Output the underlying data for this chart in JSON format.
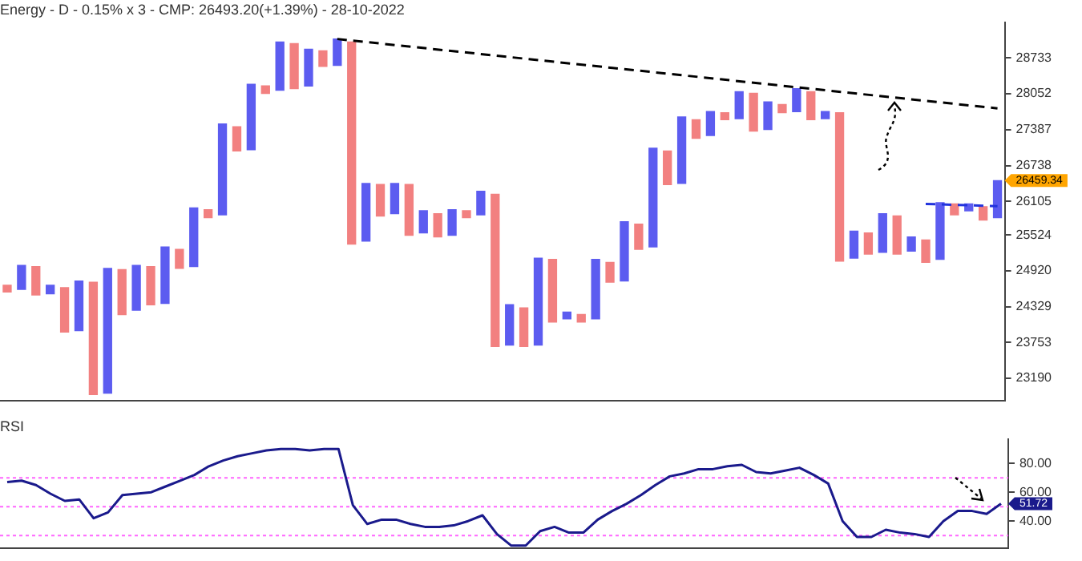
{
  "chart_data": [
    {
      "type": "bar",
      "title": "Energy - D - 0.15% x 3 - CMP: 26493.20(+1.39%) - 28-10-2022",
      "categories": [
        null,
        null,
        null,
        null,
        null,
        null,
        null,
        null,
        null,
        null,
        null,
        null,
        null,
        null,
        null,
        null,
        null,
        null,
        null,
        null,
        null,
        null,
        null,
        null,
        null,
        null,
        null,
        null,
        null,
        null,
        null,
        null,
        null,
        null,
        null,
        null,
        null,
        null,
        null,
        null,
        null,
        null,
        null,
        null,
        null,
        null,
        null,
        null,
        null,
        null,
        null,
        null,
        null,
        null,
        null,
        null,
        null,
        null,
        null,
        null,
        null,
        null,
        null,
        null,
        null,
        null,
        null,
        null,
        null,
        null
      ],
      "base": [
        24570,
        24610,
        24520,
        24540,
        23920,
        23940,
        22940,
        22960,
        24200,
        24270,
        24360,
        24380,
        24960,
        24990,
        25820,
        25870,
        27000,
        27020,
        28060,
        28120,
        28150,
        28200,
        28570,
        28590,
        25370,
        25420,
        25850,
        25890,
        25520,
        25560,
        25490,
        25520,
        25820,
        25870,
        23690,
        23710,
        23690,
        23710,
        24080,
        24130,
        24080,
        24130,
        24730,
        24750,
        25280,
        25320,
        26400,
        26420,
        27230,
        27280,
        27570,
        27590,
        27360,
        27390,
        27700,
        27720,
        27570,
        27590,
        25080,
        25130,
        25200,
        25230,
        25200,
        25250,
        25060,
        25110,
        25870,
        25940,
        25780,
        25820
      ],
      "values": [
        110,
        400,
        470,
        140,
        720,
        810,
        1790,
        2000,
        740,
        740,
        630,
        940,
        320,
        1000,
        140,
        1620,
        440,
        1210,
        140,
        920,
        860,
        700,
        300,
        510,
        3670,
        1000,
        550,
        530,
        880,
        380,
        400,
        440,
        120,
        410,
        2540,
        650,
        620,
        1420,
        1030,
        110,
        120,
        980,
        330,
        1000,
        430,
        1730,
        600,
        1200,
        340,
        440,
        130,
        500,
        700,
        510,
        150,
        430,
        520,
        130,
        2620,
        460,
        360,
        660,
        650,
        240,
        380,
        970,
        190,
        120,
        230,
        650
      ],
      "colors": [
        "#f28080",
        "#5c5cf0",
        "#f28080",
        "#5c5cf0",
        "#f28080",
        "#5c5cf0",
        "#f28080",
        "#5c5cf0",
        "#f28080",
        "#5c5cf0",
        "#f28080",
        "#5c5cf0",
        "#f28080",
        "#5c5cf0",
        "#f28080",
        "#5c5cf0",
        "#f28080",
        "#5c5cf0",
        "#f28080",
        "#5c5cf0",
        "#f28080",
        "#5c5cf0",
        "#f28080",
        "#5c5cf0",
        "#f28080",
        "#5c5cf0",
        "#f28080",
        "#5c5cf0",
        "#f28080",
        "#5c5cf0",
        "#f28080",
        "#5c5cf0",
        "#f28080",
        "#5c5cf0",
        "#f28080",
        "#5c5cf0",
        "#f28080",
        "#5c5cf0",
        "#f28080",
        "#5c5cf0",
        "#f28080",
        "#5c5cf0",
        "#f28080",
        "#5c5cf0",
        "#f28080",
        "#5c5cf0",
        "#f28080",
        "#5c5cf0",
        "#f28080",
        "#5c5cf0",
        "#f28080",
        "#5c5cf0",
        "#f28080",
        "#5c5cf0",
        "#f28080",
        "#5c5cf0",
        "#f28080",
        "#5c5cf0",
        "#f28080",
        "#5c5cf0",
        "#f28080",
        "#5c5cf0",
        "#f28080",
        "#5c5cf0",
        "#f28080",
        "#5c5cf0",
        "#f28080",
        "#5c5cf0",
        "#f28080",
        "#5c5cf0"
      ],
      "series": [
        {
          "type": "line",
          "color": "#000000",
          "line_style": "dashed",
          "values": [
            null,
            null,
            null,
            null,
            null,
            null,
            null,
            null,
            null,
            null,
            null,
            null,
            null,
            null,
            null,
            null,
            null,
            null,
            null,
            null,
            null,
            null,
            null,
            29100,
            null,
            null,
            null,
            null,
            null,
            null,
            null,
            null,
            null,
            null,
            null,
            null,
            null,
            null,
            null,
            null,
            null,
            null,
            null,
            null,
            null,
            null,
            null,
            null,
            null,
            null,
            null,
            null,
            null,
            null,
            null,
            null,
            null,
            null,
            null,
            null,
            null,
            null,
            null,
            null,
            null,
            null,
            null,
            null,
            null,
            27780
          ]
        },
        {
          "type": "line",
          "color": "#2233dd",
          "line_style": "dashed",
          "values": [
            null,
            null,
            null,
            null,
            null,
            null,
            null,
            null,
            null,
            null,
            null,
            null,
            null,
            null,
            null,
            null,
            null,
            null,
            null,
            null,
            null,
            null,
            null,
            null,
            null,
            null,
            null,
            null,
            null,
            null,
            null,
            null,
            null,
            null,
            null,
            null,
            null,
            null,
            null,
            null,
            null,
            null,
            null,
            null,
            null,
            null,
            null,
            null,
            null,
            null,
            null,
            null,
            null,
            null,
            null,
            null,
            null,
            null,
            null,
            null,
            null,
            null,
            null,
            null,
            26060,
            null,
            null,
            null,
            null,
            26020
          ]
        }
      ],
      "marker": "none",
      "ylim": [
        22840,
        29430
      ],
      "log": "y",
      "yticks": [
        23190,
        23753,
        24329,
        24920,
        25524,
        26105,
        26738,
        27387,
        28052,
        28733
      ],
      "annotations": [
        "26459.34"
      ],
      "tick_labels": "y",
      "grid": false,
      "legend": false
    },
    {
      "type": "line",
      "title": "RSI",
      "categories": [
        null,
        null,
        null,
        null,
        null,
        null,
        null,
        null,
        null,
        null,
        null,
        null,
        null,
        null,
        null,
        null,
        null,
        null,
        null,
        null,
        null,
        null,
        null,
        null,
        null,
        null,
        null,
        null,
        null,
        null,
        null,
        null,
        null,
        null,
        null,
        null,
        null,
        null,
        null,
        null,
        null,
        null,
        null,
        null,
        null,
        null,
        null,
        null,
        null,
        null,
        null,
        null,
        null,
        null,
        null,
        null,
        null,
        null,
        null,
        null,
        null,
        null,
        null,
        null,
        null,
        null,
        null,
        null,
        null,
        null
      ],
      "series": [
        {
          "color": "#1a1a8c",
          "values": [
            67,
            68,
            65,
            59,
            54,
            55,
            42,
            46,
            58,
            59,
            60,
            64,
            68,
            72,
            78,
            82,
            85,
            87,
            89,
            90,
            90,
            89,
            90,
            90,
            51,
            38,
            41,
            41,
            38,
            36,
            36,
            37,
            40,
            44,
            31,
            23,
            23,
            33,
            36,
            32,
            32,
            41,
            47,
            52,
            58,
            65,
            71,
            73,
            76,
            76,
            78,
            79,
            74,
            73,
            75,
            77,
            72,
            66,
            40,
            29,
            29,
            34,
            32,
            31,
            29,
            40,
            47,
            47,
            45,
            52
          ]
        }
      ],
      "ylim": [
        21,
        97
      ],
      "yticks": [
        {
          "value": 80,
          "label": "80.00"
        },
        {
          "value": 60,
          "label": "60.00"
        },
        {
          "value": 40,
          "label": "40.00"
        }
      ],
      "ref_lines": [
        {
          "axis": "y",
          "value": 70,
          "color": "#ff66ff",
          "line_style": "dotted"
        },
        {
          "axis": "y",
          "value": 50,
          "color": "#ff66ff",
          "line_style": "dotted"
        },
        {
          "axis": "y",
          "value": 30,
          "color": "#ff66ff",
          "line_style": "dotted"
        }
      ],
      "annotations": [
        "51.72"
      ],
      "tick_labels": "y",
      "grid": false,
      "legend": false,
      "marker": "none"
    }
  ]
}
